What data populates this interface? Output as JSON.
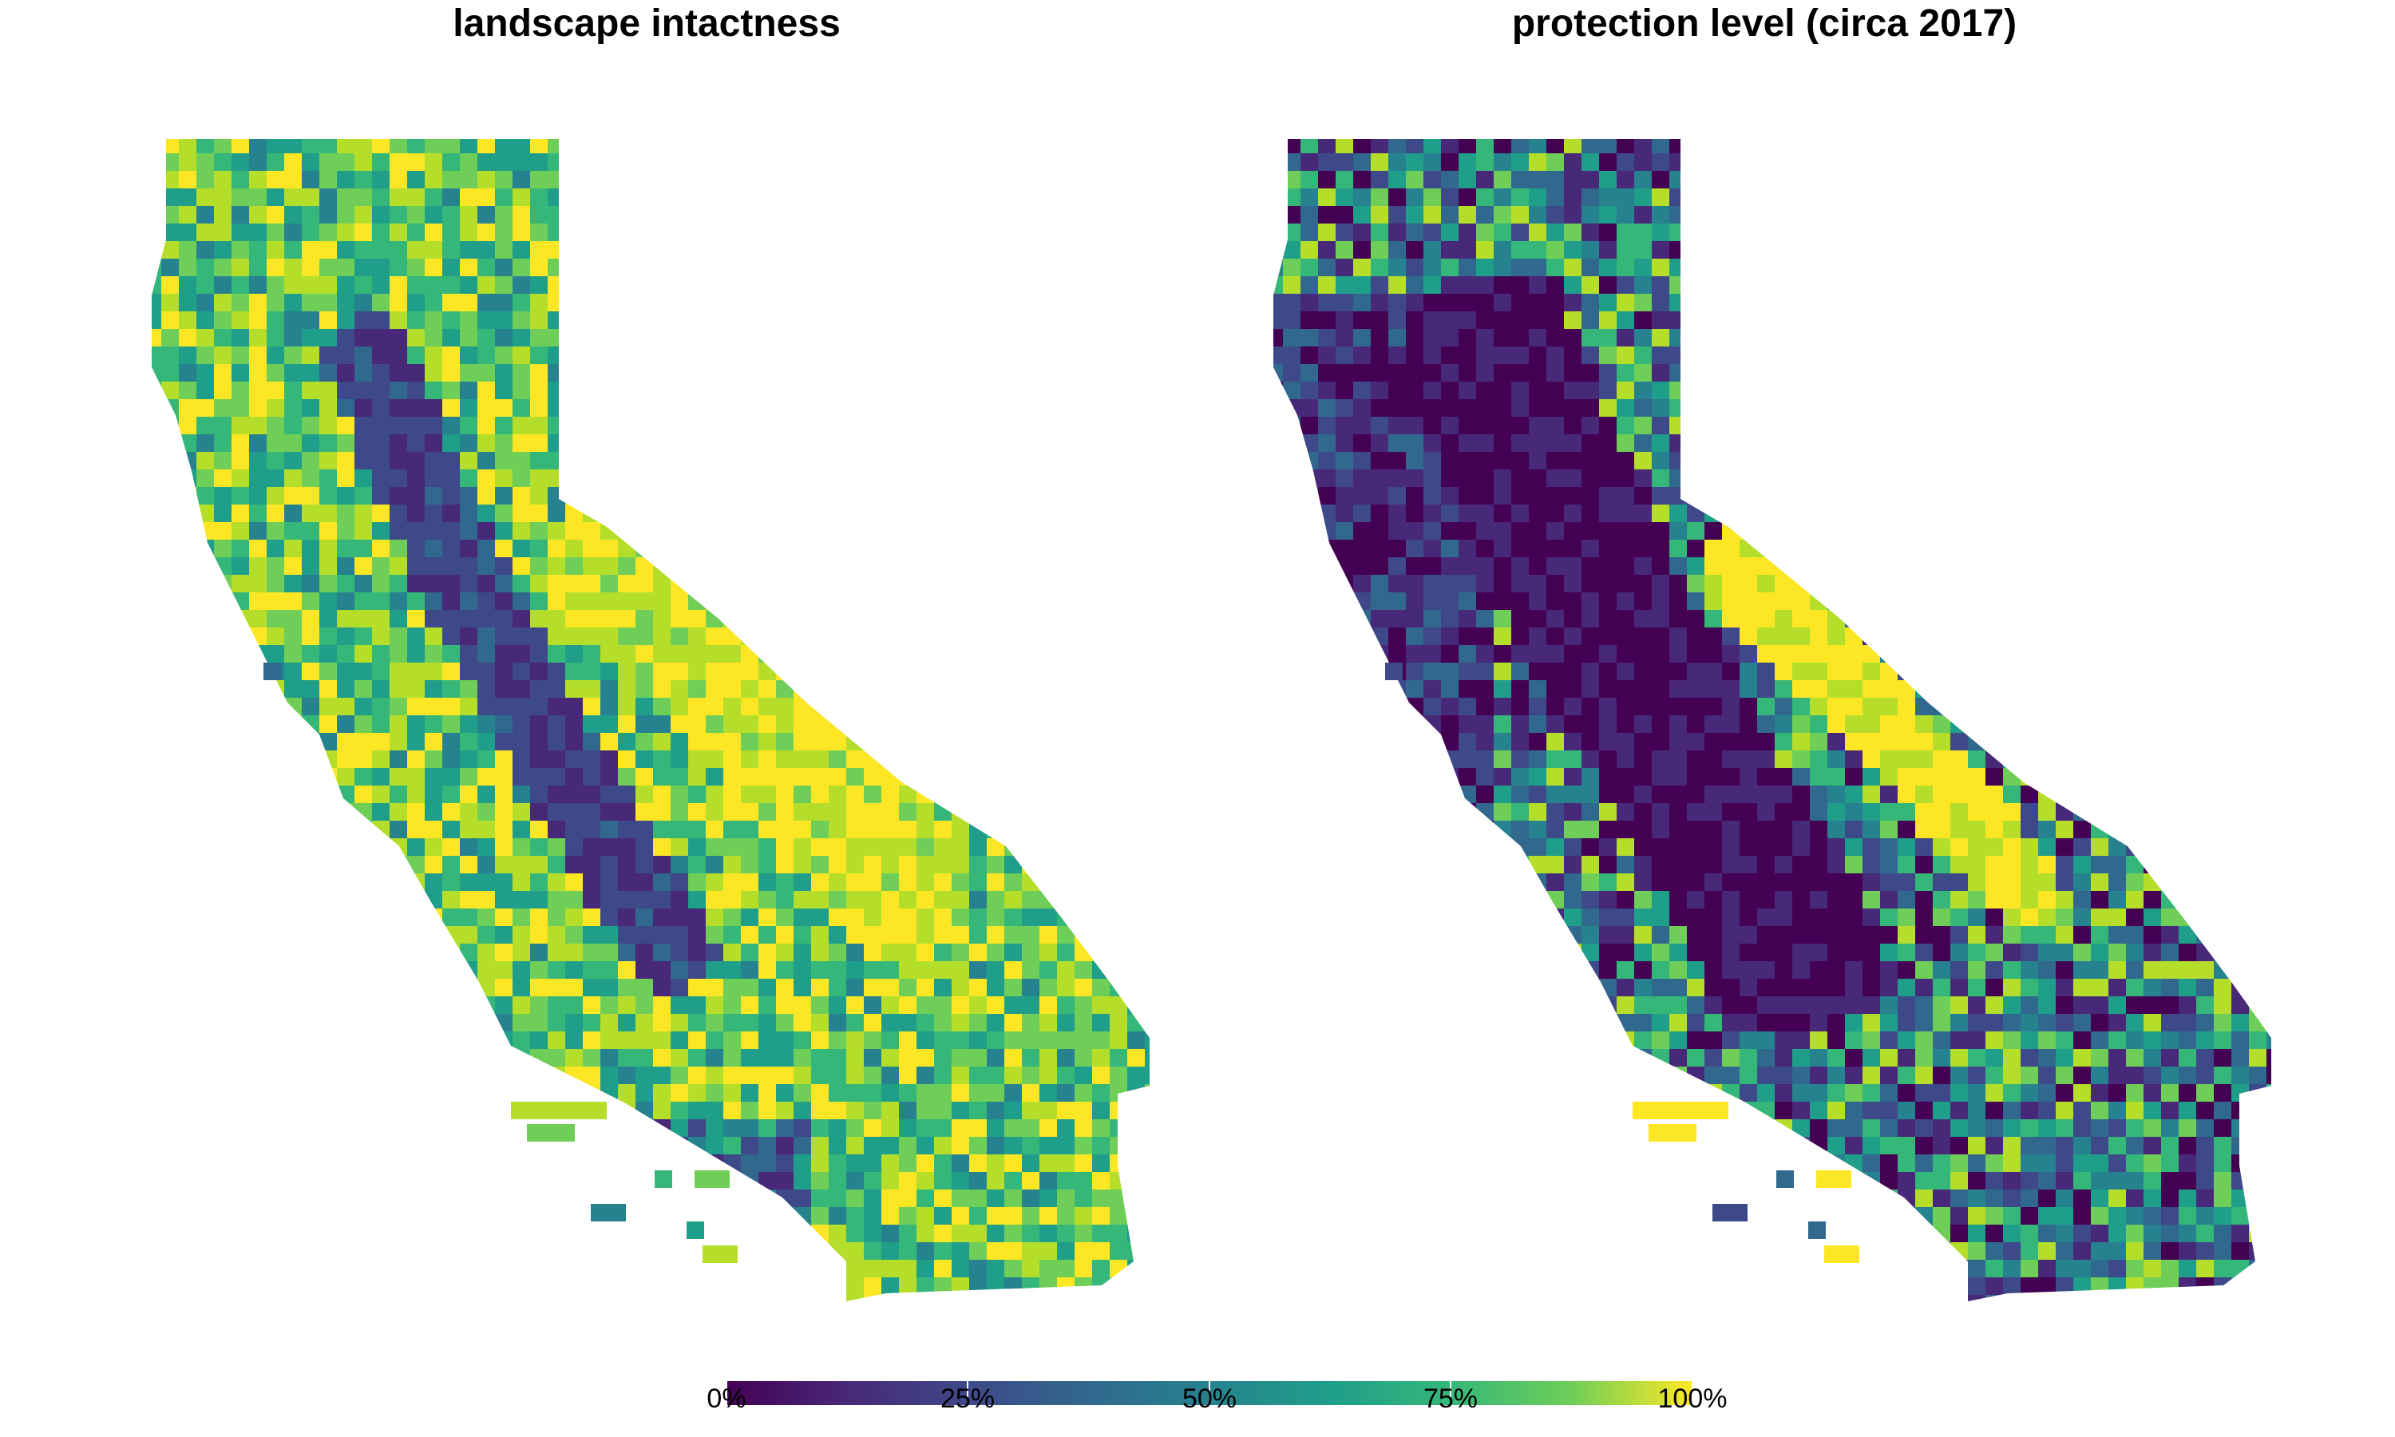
{
  "panels": [
    {
      "id": "intactness",
      "title": "landscape intactness",
      "variable": "landscape intactness"
    },
    {
      "id": "protection",
      "title": "protection level (circa 2017)",
      "variable": "protection level"
    }
  ],
  "colorbar": {
    "palette": "viridis",
    "range": [
      0,
      100
    ],
    "unit": "%",
    "ticks": [
      "0%",
      "25%",
      "50%",
      "75%",
      "100%"
    ],
    "colors": [
      "#440154",
      "#3b528b",
      "#21918c",
      "#5ec962",
      "#fde725"
    ]
  },
  "chart_data": {
    "type": "heatmap",
    "description_region": "California",
    "series": [
      {
        "name": "landscape intactness",
        "value_range": [
          0,
          100
        ]
      },
      {
        "name": "protection level (circa 2017)",
        "value_range": [
          0,
          100
        ]
      }
    ]
  }
}
